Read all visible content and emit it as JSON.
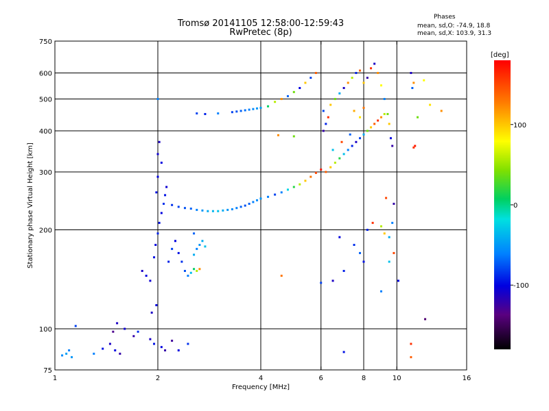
{
  "chart_data": {
    "type": "scatter",
    "title": "Tromsø 20141105 12:58:00-12:59:43",
    "subtitle": "RwPretec (8p)",
    "xlabel": "Frequency [MHz]",
    "ylabel": "Stationary phase Virtual Height [km]",
    "x_scale": "log",
    "y_scale": "log",
    "xlim": [
      1,
      16
    ],
    "ylim": [
      75,
      750
    ],
    "xticks": [
      1,
      2,
      4,
      6,
      8,
      10,
      16
    ],
    "yticks": [
      75,
      100,
      200,
      300,
      400,
      500,
      600,
      750
    ],
    "x_gridlines": [
      2,
      4,
      6,
      8,
      10
    ],
    "y_gridlines": [
      100,
      200,
      300,
      400,
      500,
      600
    ],
    "grid": true,
    "stats": {
      "header": "Phases",
      "o_mode": "mean, sd,O: -74.9, 18.8",
      "x_mode": "mean, sd,X: 103.9, 31.3"
    },
    "colorbar": {
      "label": "[deg]",
      "range": [
        -180,
        180
      ],
      "ticks": [
        100,
        0,
        -100
      ],
      "colormap": "rainbow"
    },
    "series": [
      {
        "values": [
          [
            1.05,
            83,
            -55
          ],
          [
            1.08,
            84,
            -45
          ],
          [
            1.12,
            82,
            -50
          ],
          [
            1.1,
            86,
            -60
          ],
          [
            1.3,
            84,
            -60
          ],
          [
            1.38,
            87,
            -95
          ],
          [
            1.45,
            90,
            -110
          ],
          [
            1.5,
            86,
            -100
          ],
          [
            1.55,
            84,
            -120
          ],
          [
            1.48,
            98,
            -130
          ],
          [
            1.52,
            104,
            -110
          ],
          [
            1.6,
            100,
            -105
          ],
          [
            1.7,
            95,
            -120
          ],
          [
            1.75,
            98,
            -85
          ],
          [
            1.9,
            93,
            -110
          ],
          [
            1.95,
            90,
            -95
          ],
          [
            2.05,
            88,
            -100
          ],
          [
            2.1,
            86,
            -120
          ],
          [
            2.2,
            92,
            -125
          ],
          [
            2.3,
            86,
            -100
          ],
          [
            2.45,
            90,
            -85
          ],
          [
            1.15,
            102,
            -80
          ],
          [
            1.92,
            112,
            -110
          ],
          [
            1.98,
            118,
            -100
          ],
          [
            1.8,
            150,
            -110
          ],
          [
            1.85,
            145,
            -100
          ],
          [
            1.9,
            140,
            -105
          ],
          [
            1.95,
            165,
            -95
          ],
          [
            1.97,
            180,
            -100
          ],
          [
            2.0,
            195,
            -90
          ],
          [
            2.02,
            210,
            -95
          ],
          [
            2.05,
            225,
            -100
          ],
          [
            2.08,
            240,
            -85
          ],
          [
            2.1,
            255,
            -95
          ],
          [
            2.12,
            270,
            -105
          ],
          [
            2.15,
            160,
            -90
          ],
          [
            2.2,
            175,
            -80
          ],
          [
            2.25,
            185,
            -100
          ],
          [
            2.3,
            170,
            -95
          ],
          [
            2.35,
            160,
            -85
          ],
          [
            2.4,
            150,
            -75
          ],
          [
            2.45,
            145,
            -60
          ],
          [
            2.5,
            148,
            -30
          ],
          [
            2.55,
            152,
            10
          ],
          [
            2.6,
            150,
            60
          ],
          [
            2.65,
            152,
            120
          ],
          [
            2.55,
            168,
            -40
          ],
          [
            2.6,
            175,
            -60
          ],
          [
            2.65,
            180,
            -50
          ],
          [
            2.7,
            185,
            -40
          ],
          [
            2.75,
            178,
            -30
          ],
          [
            2.55,
            195,
            -70
          ],
          [
            2.05,
            320,
            -100
          ],
          [
            2.0,
            340,
            -105
          ],
          [
            2.02,
            370,
            -110
          ],
          [
            2.0,
            290,
            -100
          ],
          [
            1.98,
            260,
            -95
          ],
          [
            2.0,
            500,
            -60
          ],
          [
            2.2,
            238,
            -85
          ],
          [
            2.3,
            235,
            -80
          ],
          [
            2.4,
            233,
            -75
          ],
          [
            2.5,
            232,
            -70
          ],
          [
            2.6,
            230,
            -60
          ],
          [
            2.7,
            229,
            -50
          ],
          [
            2.8,
            228,
            -40
          ],
          [
            2.9,
            228,
            -35
          ],
          [
            3.0,
            228,
            -30
          ],
          [
            3.1,
            229,
            -40
          ],
          [
            3.2,
            230,
            -50
          ],
          [
            3.3,
            231,
            -55
          ],
          [
            3.4,
            233,
            -60
          ],
          [
            3.5,
            235,
            -70
          ],
          [
            3.6,
            237,
            -75
          ],
          [
            3.7,
            240,
            -70
          ],
          [
            3.8,
            243,
            -60
          ],
          [
            3.9,
            246,
            -55
          ],
          [
            4.0,
            249,
            -50
          ],
          [
            4.2,
            252,
            -60
          ],
          [
            4.4,
            256,
            -80
          ],
          [
            4.6,
            260,
            -60
          ],
          [
            4.8,
            265,
            -20
          ],
          [
            5.0,
            270,
            20
          ],
          [
            5.2,
            275,
            60
          ],
          [
            5.4,
            282,
            100
          ],
          [
            5.6,
            290,
            130
          ],
          [
            5.8,
            298,
            150
          ],
          [
            6.0,
            305,
            170
          ],
          [
            6.2,
            300,
            140
          ],
          [
            6.4,
            310,
            100
          ],
          [
            6.6,
            320,
            60
          ],
          [
            6.8,
            330,
            20
          ],
          [
            7.0,
            340,
            -30
          ],
          [
            7.2,
            350,
            -60
          ],
          [
            7.4,
            360,
            -90
          ],
          [
            7.6,
            370,
            -110
          ],
          [
            7.8,
            380,
            -80
          ],
          [
            8.0,
            390,
            -40
          ],
          [
            8.2,
            400,
            40
          ],
          [
            8.4,
            410,
            100
          ],
          [
            8.6,
            420,
            140
          ],
          [
            8.8,
            430,
            160
          ],
          [
            9.0,
            440,
            120
          ],
          [
            9.2,
            450,
            60
          ],
          [
            6.1,
            400,
            -120
          ],
          [
            6.2,
            420,
            -90
          ],
          [
            6.3,
            440,
            160
          ],
          [
            6.1,
            460,
            -80
          ],
          [
            6.4,
            480,
            100
          ],
          [
            6.6,
            500,
            40
          ],
          [
            6.8,
            520,
            -40
          ],
          [
            7.0,
            540,
            -110
          ],
          [
            7.2,
            560,
            120
          ],
          [
            7.4,
            580,
            60
          ],
          [
            7.6,
            600,
            -90
          ],
          [
            7.8,
            610,
            140
          ],
          [
            8.0,
            560,
            100
          ],
          [
            8.2,
            580,
            -120
          ],
          [
            8.4,
            620,
            160
          ],
          [
            8.6,
            640,
            -110
          ],
          [
            8.8,
            600,
            120
          ],
          [
            9.0,
            550,
            80
          ],
          [
            9.2,
            500,
            -60
          ],
          [
            9.4,
            450,
            40
          ],
          [
            9.5,
            420,
            100
          ],
          [
            9.6,
            380,
            -100
          ],
          [
            9.7,
            360,
            -120
          ],
          [
            7.5,
            460,
            110
          ],
          [
            7.8,
            440,
            90
          ],
          [
            8.0,
            470,
            130
          ],
          [
            6.5,
            350,
            -30
          ],
          [
            6.9,
            370,
            150
          ],
          [
            7.3,
            390,
            -70
          ],
          [
            3.3,
            456,
            -80
          ],
          [
            3.4,
            458,
            -75
          ],
          [
            3.5,
            460,
            -70
          ],
          [
            3.6,
            462,
            -65
          ],
          [
            3.7,
            464,
            -60
          ],
          [
            3.8,
            466,
            -55
          ],
          [
            3.9,
            468,
            -50
          ],
          [
            4.0,
            470,
            -45
          ],
          [
            2.6,
            452,
            -80
          ],
          [
            2.75,
            450,
            -90
          ],
          [
            3.0,
            452,
            -60
          ],
          [
            4.2,
            475,
            10
          ],
          [
            4.4,
            490,
            60
          ],
          [
            4.6,
            500,
            120
          ],
          [
            4.8,
            510,
            -70
          ],
          [
            5.0,
            525,
            40
          ],
          [
            5.2,
            540,
            -100
          ],
          [
            5.4,
            560,
            100
          ],
          [
            5.6,
            580,
            -80
          ],
          [
            5.8,
            600,
            140
          ],
          [
            4.5,
            388,
            120
          ],
          [
            4.6,
            145,
            130
          ],
          [
            5.0,
            385,
            40
          ],
          [
            6.0,
            138,
            -80
          ],
          [
            6.5,
            140,
            -110
          ],
          [
            6.8,
            190,
            -100
          ],
          [
            7.0,
            150,
            -90
          ],
          [
            7.5,
            180,
            -85
          ],
          [
            7.8,
            170,
            -70
          ],
          [
            8.0,
            160,
            -95
          ],
          [
            8.2,
            200,
            -90
          ],
          [
            8.5,
            210,
            160
          ],
          [
            9.0,
            205,
            60
          ],
          [
            9.2,
            195,
            100
          ],
          [
            9.5,
            160,
            -30
          ],
          [
            9.8,
            170,
            150
          ],
          [
            11.0,
            600,
            -110
          ],
          [
            11.2,
            560,
            120
          ],
          [
            12.0,
            570,
            80
          ],
          [
            11.1,
            540,
            -70
          ],
          [
            11.3,
            360,
            170
          ],
          [
            11.2,
            356,
            160
          ],
          [
            11.5,
            440,
            40
          ],
          [
            12.5,
            480,
            90
          ],
          [
            13.5,
            460,
            120
          ],
          [
            11.0,
            90,
            160
          ],
          [
            11.0,
            82,
            140
          ],
          [
            12.1,
            107,
            -140
          ],
          [
            9.3,
            250,
            150
          ],
          [
            9.8,
            240,
            -120
          ],
          [
            10.1,
            140,
            -100
          ],
          [
            9.0,
            130,
            -60
          ],
          [
            7.0,
            85,
            -95
          ],
          [
            9.5,
            190,
            -40
          ],
          [
            9.7,
            210,
            -60
          ]
        ]
      }
    ]
  }
}
